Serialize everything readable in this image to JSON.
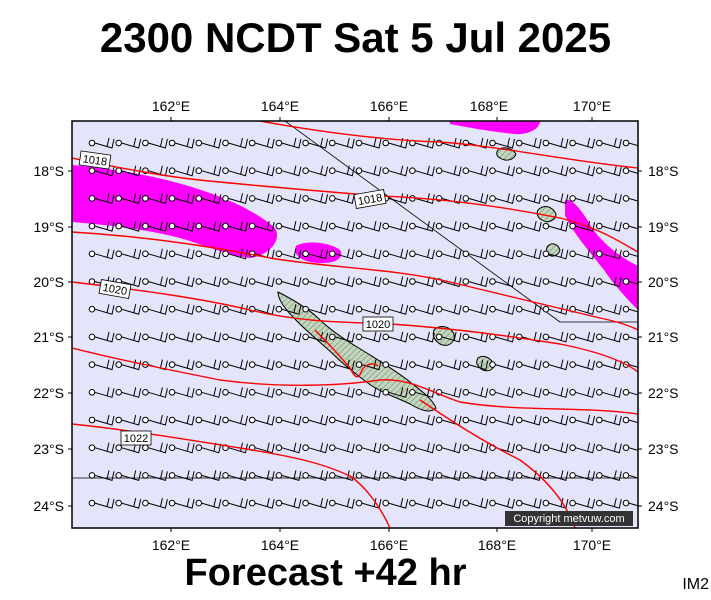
{
  "header": {
    "title": "2300 NCDT Sat 5 Jul 2025"
  },
  "footer": {
    "forecast_label": "Forecast +42 hr",
    "image_tag": "IM2",
    "copyright": "Copyright metvuw.com"
  },
  "map": {
    "longitude_ticks": [
      "162°E",
      "164°E",
      "166°E",
      "168°E",
      "170°E"
    ],
    "latitude_ticks": [
      "18°S",
      "19°S",
      "20°S",
      "21°S",
      "22°S",
      "23°S",
      "24°S"
    ],
    "isobar_labels": [
      "1018",
      "1018",
      "1020",
      "1020",
      "1022"
    ],
    "colors": {
      "ocean": "#e4e4fb",
      "isobar": "#ff0000",
      "rain": "#ff00ff",
      "land": "#b8ccb4"
    }
  }
}
